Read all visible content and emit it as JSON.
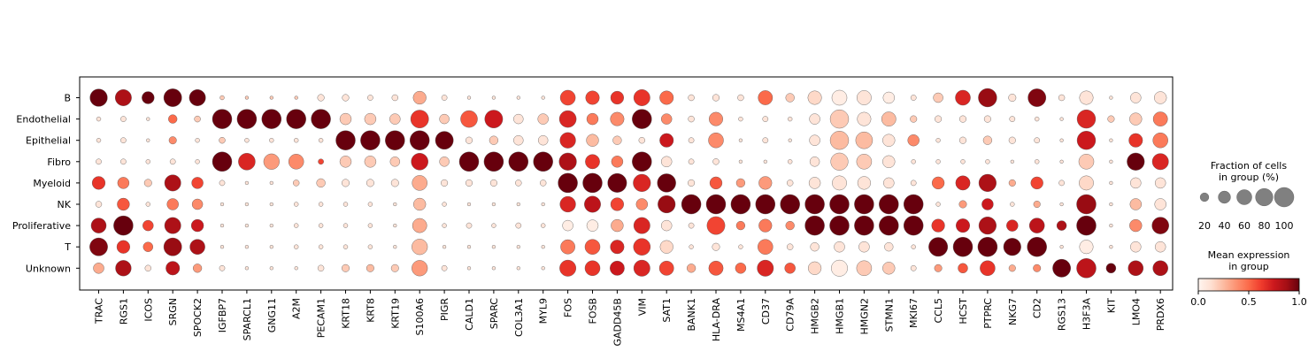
{
  "chart_data": {
    "type": "dotplot",
    "groups": [
      "B",
      "Endothelial",
      "Epithelial",
      "Fibro",
      "Myeloid",
      "NK",
      "Proliferative",
      "T",
      "Unknown"
    ],
    "genes": [
      "TRAC",
      "RGS1",
      "ICOS",
      "SRGN",
      "SPOCK2",
      "IGFBP7",
      "SPARCL1",
      "GNG11",
      "A2M",
      "PECAM1",
      "KRT18",
      "KRT8",
      "KRT19",
      "S100A6",
      "PIGR",
      "CALD1",
      "SPARC",
      "COL3A1",
      "MYL9",
      "FOS",
      "FOSB",
      "GADD45B",
      "VIM",
      "SAT1",
      "BANK1",
      "HLA-DRA",
      "MS4A1",
      "CD37",
      "CD79A",
      "HMGB2",
      "HMGB1",
      "HMGN2",
      "STMN1",
      "MKI67",
      "CCL5",
      "HCST",
      "PTPRC",
      "NKG7",
      "CD2",
      "RGS13",
      "H3F3A",
      "KIT",
      "LMO4",
      "PRDX6"
    ],
    "fraction_pct": [
      [
        80,
        70,
        40,
        85,
        70,
        5,
        3,
        3,
        3,
        12,
        12,
        8,
        10,
        45,
        8,
        3,
        3,
        3,
        3,
        60,
        50,
        45,
        70,
        50,
        10,
        12,
        10,
        55,
        20,
        50,
        60,
        55,
        35,
        8,
        25,
        60,
        90,
        15,
        85,
        10,
        50,
        3,
        30,
        40
      ],
      [
        5,
        8,
        3,
        20,
        10,
        100,
        100,
        100,
        100,
        100,
        35,
        35,
        30,
        85,
        25,
        75,
        85,
        25,
        30,
        75,
        35,
        50,
        100,
        30,
        10,
        50,
        5,
        8,
        5,
        30,
        90,
        50,
        55,
        12,
        12,
        12,
        12,
        8,
        5,
        3,
        90,
        12,
        40,
        55
      ],
      [
        5,
        8,
        3,
        15,
        5,
        10,
        5,
        5,
        5,
        5,
        100,
        100,
        100,
        100,
        85,
        12,
        20,
        25,
        25,
        65,
        40,
        20,
        10,
        50,
        8,
        60,
        3,
        8,
        3,
        30,
        90,
        75,
        40,
        35,
        5,
        12,
        20,
        12,
        8,
        3,
        90,
        3,
        50,
        60
      ],
      [
        8,
        8,
        5,
        8,
        5,
        100,
        75,
        65,
        60,
        8,
        35,
        35,
        25,
        75,
        25,
        100,
        100,
        100,
        100,
        80,
        55,
        35,
        100,
        30,
        8,
        10,
        3,
        3,
        5,
        25,
        80,
        60,
        40,
        5,
        5,
        5,
        5,
        3,
        5,
        3,
        60,
        3,
        80,
        70
      ],
      [
        45,
        35,
        15,
        70,
        35,
        8,
        3,
        3,
        10,
        20,
        15,
        15,
        15,
        60,
        12,
        12,
        12,
        10,
        10,
        100,
        100,
        95,
        80,
        90,
        12,
        40,
        20,
        45,
        10,
        35,
        55,
        45,
        30,
        8,
        40,
        55,
        80,
        12,
        40,
        8,
        55,
        3,
        30,
        30
      ],
      [
        10,
        40,
        5,
        35,
        30,
        3,
        3,
        3,
        5,
        5,
        5,
        5,
        3,
        40,
        5,
        3,
        3,
        3,
        3,
        65,
        70,
        45,
        35,
        80,
        100,
        100,
        100,
        100,
        100,
        100,
        100,
        100,
        100,
        100,
        5,
        15,
        35,
        5,
        12,
        3,
        100,
        3,
        35,
        35
      ],
      [
        60,
        100,
        30,
        70,
        40,
        3,
        3,
        3,
        5,
        5,
        5,
        5,
        3,
        55,
        5,
        8,
        5,
        8,
        5,
        30,
        35,
        40,
        70,
        30,
        8,
        85,
        20,
        45,
        20,
        100,
        100,
        100,
        100,
        100,
        45,
        50,
        80,
        35,
        60,
        25,
        100,
        3,
        40,
        75
      ],
      [
        85,
        45,
        25,
        85,
        60,
        3,
        3,
        3,
        5,
        5,
        5,
        5,
        3,
        65,
        3,
        3,
        3,
        3,
        3,
        55,
        60,
        50,
        75,
        45,
        5,
        15,
        5,
        60,
        10,
        20,
        30,
        30,
        20,
        5,
        95,
        100,
        100,
        80,
        100,
        3,
        50,
        3,
        30,
        30
      ],
      [
        30,
        65,
        10,
        50,
        20,
        8,
        3,
        3,
        3,
        10,
        15,
        15,
        15,
        65,
        8,
        3,
        3,
        3,
        3,
        70,
        60,
        55,
        70,
        55,
        20,
        55,
        30,
        70,
        30,
        45,
        70,
        60,
        40,
        8,
        15,
        25,
        60,
        12,
        15,
        85,
        100,
        25,
        60,
        60
      ]
    ],
    "mean_expression": [
      [
        1.0,
        0.85,
        1.0,
        1.0,
        1.0,
        0.2,
        0.2,
        0.2,
        0.2,
        0.1,
        0.1,
        0.1,
        0.1,
        0.3,
        0.1,
        0.1,
        0.1,
        0.1,
        0.1,
        0.6,
        0.6,
        0.65,
        0.65,
        0.5,
        0.1,
        0.1,
        0.1,
        0.5,
        0.2,
        0.15,
        0.05,
        0.1,
        0.05,
        0.1,
        0.2,
        0.7,
        0.9,
        0.1,
        0.95,
        0.1,
        0.1,
        0.1,
        0.1,
        0.1
      ],
      [
        0.1,
        0.1,
        0.1,
        0.5,
        0.2,
        1.0,
        1.0,
        1.0,
        1.0,
        1.0,
        0.2,
        0.2,
        0.2,
        0.65,
        0.2,
        0.55,
        0.75,
        0.1,
        0.2,
        0.7,
        0.45,
        0.4,
        1.0,
        0.4,
        0.1,
        0.4,
        0.1,
        0.1,
        0.1,
        0.1,
        0.2,
        0.1,
        0.25,
        0.2,
        0.1,
        0.1,
        0.1,
        0.1,
        0.1,
        0.1,
        0.7,
        0.2,
        0.2,
        0.45
      ],
      [
        0.1,
        0.1,
        0.1,
        0.4,
        0.1,
        0.2,
        0.1,
        0.1,
        0.1,
        0.1,
        1.0,
        1.0,
        1.0,
        1.0,
        1.0,
        0.1,
        0.2,
        0.1,
        0.1,
        0.7,
        0.25,
        0.2,
        0.1,
        0.75,
        0.1,
        0.4,
        0.1,
        0.1,
        0.1,
        0.1,
        0.25,
        0.25,
        0.1,
        0.4,
        0.1,
        0.1,
        0.2,
        0.1,
        0.1,
        0.1,
        0.75,
        0.1,
        0.65,
        0.45
      ],
      [
        0.1,
        0.1,
        0.1,
        0.1,
        0.1,
        1.0,
        0.7,
        0.35,
        0.4,
        0.6,
        0.2,
        0.2,
        0.2,
        0.75,
        0.2,
        1.0,
        1.0,
        1.0,
        1.0,
        0.85,
        0.65,
        0.45,
        1.0,
        0.1,
        0.1,
        0.1,
        0.1,
        0.1,
        0.1,
        0.1,
        0.2,
        0.2,
        0.1,
        0.1,
        0.1,
        0.1,
        0.1,
        0.1,
        0.1,
        0.1,
        0.2,
        0.1,
        1.0,
        0.7
      ],
      [
        0.65,
        0.45,
        0.2,
        0.85,
        0.6,
        0.1,
        0.1,
        0.1,
        0.2,
        0.2,
        0.1,
        0.1,
        0.1,
        0.3,
        0.1,
        0.1,
        0.1,
        0.1,
        0.1,
        1.0,
        1.0,
        1.0,
        0.7,
        1.0,
        0.1,
        0.55,
        0.35,
        0.35,
        0.1,
        0.1,
        0.1,
        0.1,
        0.1,
        0.1,
        0.5,
        0.7,
        0.85,
        0.3,
        0.6,
        0.1,
        0.15,
        0.1,
        0.1,
        0.1
      ],
      [
        0.1,
        0.55,
        0.1,
        0.45,
        0.4,
        0.1,
        0.1,
        0.1,
        0.1,
        0.1,
        0.1,
        0.1,
        0.1,
        0.25,
        0.1,
        0.1,
        0.1,
        0.1,
        0.1,
        0.7,
        0.8,
        0.6,
        0.4,
        0.9,
        1.0,
        1.0,
        1.0,
        1.0,
        1.0,
        1.0,
        1.0,
        1.0,
        1.0,
        1.0,
        0.1,
        0.35,
        0.75,
        0.1,
        0.3,
        0.1,
        0.9,
        0.1,
        0.25,
        0.1
      ],
      [
        0.85,
        1.0,
        0.6,
        0.85,
        0.75,
        0.1,
        0.1,
        0.1,
        0.1,
        0.1,
        0.1,
        0.1,
        0.1,
        0.3,
        0.1,
        0.1,
        0.1,
        0.1,
        0.1,
        0.05,
        0.05,
        0.3,
        0.7,
        0.1,
        0.1,
        0.6,
        0.45,
        0.45,
        0.4,
        1.0,
        1.0,
        1.0,
        1.0,
        1.0,
        0.65,
        0.75,
        0.85,
        0.7,
        0.8,
        0.85,
        1.0,
        0.1,
        0.4,
        0.95
      ],
      [
        0.95,
        0.65,
        0.5,
        0.9,
        0.85,
        0.1,
        0.1,
        0.1,
        0.1,
        0.1,
        0.1,
        0.1,
        0.1,
        0.25,
        0.1,
        0.1,
        0.1,
        0.1,
        0.1,
        0.45,
        0.55,
        0.7,
        0.65,
        0.15,
        0.1,
        0.1,
        0.1,
        0.45,
        0.1,
        0.1,
        0.1,
        0.1,
        0.1,
        0.1,
        1.0,
        1.0,
        1.0,
        1.0,
        1.0,
        0.1,
        0.05,
        0.1,
        0.1,
        0.1
      ],
      [
        0.3,
        0.85,
        0.1,
        0.8,
        0.35,
        0.1,
        0.1,
        0.1,
        0.1,
        0.1,
        0.2,
        0.25,
        0.2,
        0.35,
        0.1,
        0.1,
        0.1,
        0.1,
        0.1,
        0.65,
        0.65,
        0.75,
        0.7,
        0.6,
        0.3,
        0.55,
        0.5,
        0.7,
        0.55,
        0.15,
        0.05,
        0.2,
        0.2,
        0.1,
        0.35,
        0.55,
        0.65,
        0.3,
        0.4,
        1.0,
        0.8,
        1.0,
        0.85,
        0.85
      ]
    ],
    "size_legend": {
      "title": "Fraction of cells\nin group (%)",
      "values": [
        20,
        40,
        60,
        80,
        100
      ]
    },
    "color_legend": {
      "title": "Mean expression\nin group",
      "ticks": [
        "0.0",
        "0.5",
        "1.0"
      ],
      "colormap": "Reds"
    }
  }
}
